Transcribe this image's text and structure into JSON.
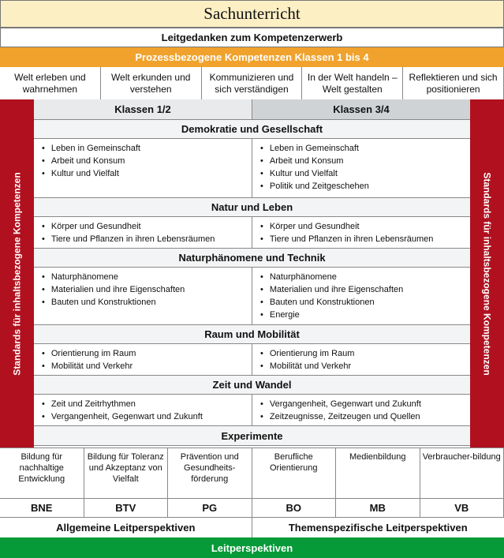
{
  "title": "Sachunterricht",
  "leitgedanken": "Leitgedanken zum Kompetenzerwerb",
  "prozess": {
    "title": "Prozessbezogene Kompetenzen Klassen 1 bis 4",
    "items": [
      "Welt erleben und wahrnehmen",
      "Welt erkunden und verstehen",
      "Kommunizieren und sich verständigen",
      "In der Welt handeln –Welt gestalten",
      "Reflektieren und sich positionieren"
    ]
  },
  "side_label": "Standards für inhaltsbezogene Kompetenzen",
  "klassen": [
    "Klassen 1/2",
    "Klassen 3/4"
  ],
  "sections": [
    {
      "heading": "Demokratie und Gesellschaft",
      "left": [
        "Leben in Gemeinschaft",
        "Arbeit und Konsum",
        "Kultur und Vielfalt"
      ],
      "right": [
        "Leben in Gemeinschaft",
        "Arbeit und Konsum",
        "Kultur und Vielfalt",
        "Politik und Zeitgeschehen"
      ]
    },
    {
      "heading": "Natur und Leben",
      "left": [
        "Körper und Gesundheit",
        "Tiere und Pflanzen in ihren Lebensräumen"
      ],
      "right": [
        "Körper und Gesundheit",
        "Tiere und Pflanzen in ihren Lebensräumen"
      ]
    },
    {
      "heading": "Naturphänomene und Technik",
      "left": [
        "Naturphänomene",
        "Materialien und ihre Eigenschaften",
        "Bauten und Konstruktionen"
      ],
      "right": [
        "Naturphänomene",
        "Materialien und ihre Eigenschaften",
        "Bauten und Konstruktionen",
        "Energie"
      ]
    },
    {
      "heading": "Raum und Mobilität",
      "left": [
        "Orientierung im Raum",
        "Mobilität und Verkehr"
      ],
      "right": [
        "Orientierung im Raum",
        "Mobilität und Verkehr"
      ]
    },
    {
      "heading": "Zeit und Wandel",
      "left": [
        "Zeit und Zeitrhythmen",
        "Vergangenheit, Gegenwart und Zukunft"
      ],
      "right": [
        "Vergangenheit, Gegenwart und Zukunft",
        "Zeitzeugnisse, Zeitzeugen und Quellen"
      ]
    }
  ],
  "experimente": "Experimente",
  "perspektiven": [
    {
      "name": "Bildung für nachhaltige Entwicklung",
      "abbr": "BNE"
    },
    {
      "name": "Bildung für Toleranz und Akzeptanz von Vielfalt",
      "abbr": "BTV"
    },
    {
      "name": "Prävention und Gesundheits-förderung",
      "abbr": "PG"
    },
    {
      "name": "Berufliche Orientierung",
      "abbr": "BO"
    },
    {
      "name": "Medienbildung",
      "abbr": "MB"
    },
    {
      "name": "Verbraucher-bildung",
      "abbr": "VB"
    }
  ],
  "allgemeine": "Allgemeine Leitperspektiven",
  "themenspezifische": "Themenspezifische Leitperspektiven",
  "leitperspektiven": "Leitperspektiven",
  "colors": {
    "title_bg": "#fcefc4",
    "orange": "#f0a22c",
    "red": "#b1111f",
    "green": "#079a38"
  }
}
